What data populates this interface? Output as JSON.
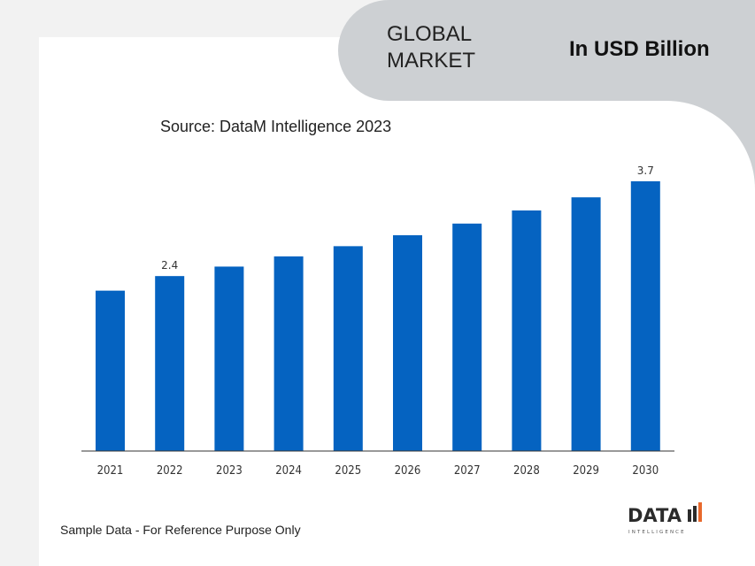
{
  "header": {
    "title": "GLOBAL MARKET",
    "unit": "In USD Billion"
  },
  "source": "Source: DataM Intelligence 2023",
  "footer_note": "Sample Data - For Reference Purpose Only",
  "logo": {
    "text": "DATA",
    "subtext": "INTELLIGENCE",
    "accent_color": "#e8692c"
  },
  "chart_data": {
    "type": "bar",
    "categories": [
      "2021",
      "2022",
      "2023",
      "2024",
      "2025",
      "2026",
      "2027",
      "2028",
      "2029",
      "2030"
    ],
    "values": [
      2.2,
      2.4,
      2.53,
      2.67,
      2.81,
      2.96,
      3.12,
      3.3,
      3.48,
      3.7
    ],
    "data_labels": {
      "1": "2.4",
      "9": "3.7"
    },
    "bar_color": "#0563c1",
    "ylim": [
      0,
      3.7
    ],
    "grid": false,
    "legend": "none",
    "title": "",
    "xlabel": "",
    "ylabel": ""
  }
}
